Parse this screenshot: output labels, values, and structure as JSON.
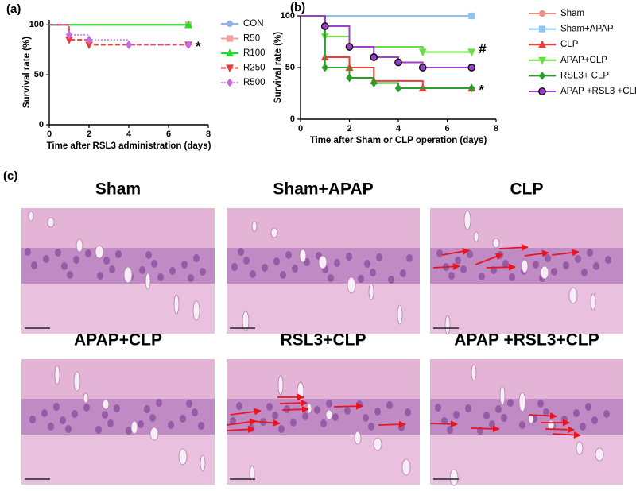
{
  "chart_data": [
    {
      "type": "step",
      "panel_label": "(a)",
      "ylabel": "Survival rate (%)",
      "xlabel": "Time after RSL3 administration (days)",
      "xlim": [
        0,
        8
      ],
      "xticks": [
        0,
        2,
        4,
        6,
        8
      ],
      "ylim": [
        0,
        105
      ],
      "yticks": [
        0,
        50,
        100
      ],
      "series": [
        {
          "name": "CON",
          "color": "#8fb4e8",
          "marker": "circle",
          "dash": "solid",
          "x": [
            0,
            7
          ],
          "values": [
            100,
            100
          ]
        },
        {
          "name": "R50",
          "color": "#f4a0a0",
          "marker": "square",
          "dash": "solid",
          "x": [
            0,
            7
          ],
          "values": [
            100,
            100
          ]
        },
        {
          "name": "R100",
          "color": "#22dd22",
          "marker": "triangle",
          "dash": "solid",
          "x": [
            0,
            7
          ],
          "values": [
            100,
            100
          ]
        },
        {
          "name": "R250",
          "color": "#ee3b3b",
          "marker": "triangle-down",
          "dash": "dashed",
          "x": [
            0,
            1,
            2,
            7
          ],
          "values": [
            100,
            85,
            80,
            80
          ]
        },
        {
          "name": "R500",
          "color": "#c56ce0",
          "marker": "diamond",
          "dash": "dotted",
          "x": [
            0,
            1,
            2,
            4,
            7
          ],
          "values": [
            100,
            90,
            85,
            80,
            80
          ]
        }
      ],
      "annotations": [
        {
          "text": "*",
          "series": 3
        }
      ]
    },
    {
      "type": "step",
      "panel_label": "(b)",
      "ylabel": "Survival rate (%)",
      "xlabel": "Time after Sham or CLP operation (days)",
      "xlim": [
        0,
        8
      ],
      "xticks": [
        0,
        2,
        4,
        6,
        8
      ],
      "ylim": [
        0,
        100
      ],
      "yticks": [
        0,
        50,
        100
      ],
      "series": [
        {
          "name": "Sham",
          "color": "#f08c80",
          "marker": "circle",
          "dash": "solid",
          "x": [
            0,
            7
          ],
          "values": [
            100,
            100
          ]
        },
        {
          "name": "Sham+APAP",
          "color": "#8fc4f0",
          "marker": "square",
          "dash": "solid",
          "x": [
            0,
            7
          ],
          "values": [
            100,
            100
          ]
        },
        {
          "name": "CLP",
          "color": "#ee3b3b",
          "marker": "triangle",
          "dash": "solid",
          "x": [
            0,
            1,
            2,
            3,
            5,
            7
          ],
          "values": [
            100,
            60,
            50,
            37,
            30,
            30
          ]
        },
        {
          "name": "APAP+CLP",
          "color": "#66e040",
          "marker": "triangle-down",
          "dash": "solid",
          "x": [
            0,
            1,
            2,
            5,
            7
          ],
          "values": [
            100,
            80,
            70,
            65,
            65
          ]
        },
        {
          "name": "RSL3+ CLP",
          "color": "#2aa02a",
          "marker": "diamond",
          "dash": "solid",
          "x": [
            0,
            1,
            2,
            3,
            4,
            7
          ],
          "values": [
            100,
            50,
            40,
            35,
            30,
            30
          ]
        },
        {
          "name": "APAP +RSL3 +CLP",
          "color": "#9b40c8",
          "marker": "circle-edge",
          "dash": "solid",
          "x": [
            0,
            1,
            2,
            3,
            4,
            5,
            7
          ],
          "values": [
            100,
            90,
            70,
            60,
            55,
            50,
            50
          ]
        }
      ],
      "annotations": [
        {
          "text": "#",
          "series": 3
        },
        {
          "text": "*",
          "series": 2
        }
      ]
    }
  ],
  "panel_c": {
    "panel_label": "(c)",
    "images": [
      {
        "title": "Sham"
      },
      {
        "title": "Sham+APAP"
      },
      {
        "title": "CLP"
      },
      {
        "title": "APAP+CLP"
      },
      {
        "title": "RSL3+CLP"
      },
      {
        "title": "APAP +RSL3+CLP"
      }
    ]
  }
}
